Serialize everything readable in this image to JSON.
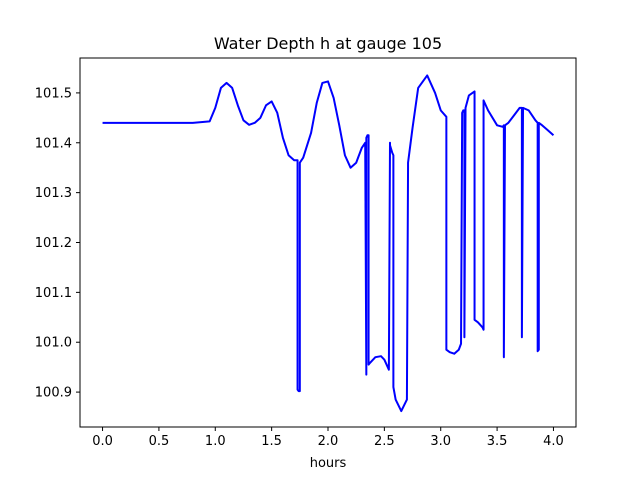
{
  "chart_data": {
    "type": "line",
    "title": "Water Depth h at gauge 105",
    "xlabel": "hours",
    "ylabel": "",
    "xlim": [
      -0.2,
      4.2
    ],
    "ylim": [
      100.83,
      101.57
    ],
    "x_ticks": [
      "0.0",
      "0.5",
      "1.0",
      "1.5",
      "2.0",
      "2.5",
      "3.0",
      "3.5",
      "4.0"
    ],
    "y_ticks": [
      "100.9",
      "101.0",
      "101.1",
      "101.2",
      "101.3",
      "101.4",
      "101.5"
    ],
    "grid": false,
    "legend": "none",
    "series": [
      {
        "color": "#0000ff",
        "x": [
          0.0,
          0.5,
          0.8,
          0.95,
          1.0,
          1.05,
          1.1,
          1.15,
          1.2,
          1.25,
          1.3,
          1.35,
          1.4,
          1.45,
          1.5,
          1.55,
          1.6,
          1.65,
          1.7,
          1.73,
          1.73,
          1.74,
          1.75,
          1.75,
          1.78,
          1.85,
          1.9,
          1.95,
          2.0,
          2.05,
          2.1,
          2.15,
          2.2,
          2.25,
          2.3,
          2.33,
          2.34,
          2.34,
          2.35,
          2.36,
          2.36,
          2.37,
          2.42,
          2.47,
          2.5,
          2.54,
          2.55,
          2.55,
          2.57,
          2.58,
          2.58,
          2.6,
          2.65,
          2.7,
          2.71,
          2.71,
          2.75,
          2.8,
          2.88,
          2.95,
          3.0,
          3.05,
          3.05,
          3.08,
          3.12,
          3.16,
          3.18,
          3.19,
          3.19,
          3.2,
          3.21,
          3.21,
          3.22,
          3.25,
          3.3,
          3.3,
          3.33,
          3.37,
          3.38,
          3.38,
          3.42,
          3.5,
          3.55,
          3.56,
          3.56,
          3.57,
          3.6,
          3.65,
          3.7,
          3.72,
          3.72,
          3.73,
          3.78,
          3.84,
          3.86,
          3.86,
          3.87,
          3.87,
          3.9,
          3.95,
          4.0
        ],
        "values": [
          101.44,
          101.44,
          101.44,
          101.443,
          101.47,
          101.51,
          101.52,
          101.51,
          101.475,
          101.445,
          101.436,
          101.44,
          101.45,
          101.475,
          101.483,
          101.46,
          101.41,
          101.375,
          101.365,
          101.365,
          100.905,
          100.902,
          100.902,
          101.36,
          101.37,
          101.42,
          101.48,
          101.52,
          101.523,
          101.49,
          101.435,
          101.375,
          101.35,
          101.36,
          101.39,
          101.4,
          100.935,
          101.41,
          101.415,
          101.415,
          100.955,
          100.958,
          100.97,
          100.972,
          100.965,
          100.945,
          101.4,
          101.395,
          101.38,
          101.375,
          100.91,
          100.885,
          100.862,
          100.885,
          101.35,
          101.36,
          101.43,
          101.51,
          101.535,
          101.5,
          101.465,
          101.452,
          100.985,
          100.98,
          100.977,
          100.985,
          100.997,
          101.455,
          101.46,
          101.465,
          101.465,
          101.01,
          101.47,
          101.495,
          101.503,
          101.045,
          101.04,
          101.03,
          101.025,
          101.485,
          101.465,
          101.435,
          101.432,
          101.435,
          100.97,
          101.435,
          101.44,
          101.455,
          101.47,
          101.47,
          101.01,
          101.47,
          101.465,
          101.445,
          101.44,
          100.982,
          100.985,
          101.44,
          101.435,
          101.425,
          101.415
        ]
      }
    ]
  }
}
